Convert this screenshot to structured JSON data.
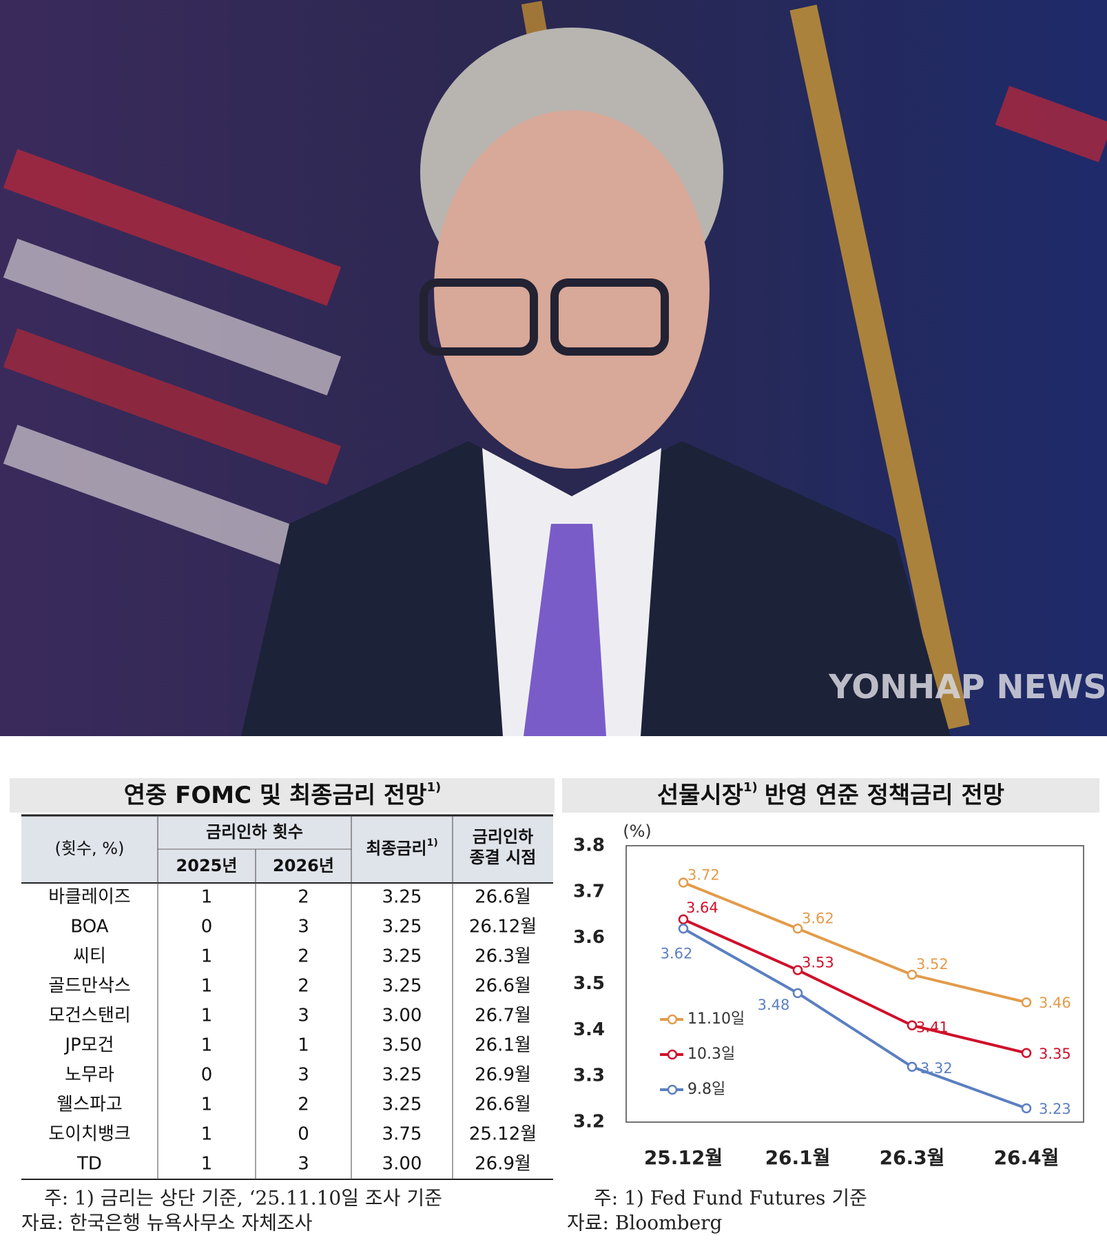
{
  "photo": {
    "watermark": "YONHAP NEWS"
  },
  "table": {
    "title": "연중 FOMC 및 최종금리 전망",
    "title_note": "1)",
    "header": {
      "unit": "(횟수, %)",
      "group": "금리인하 횟수",
      "years": [
        "2025년",
        "2026년"
      ],
      "final_rate": "최종금리",
      "final_rate_note": "1)",
      "end_line1": "금리인하",
      "end_line2": "종결 시점"
    },
    "rows": [
      [
        "바클레이즈",
        "1",
        "2",
        "3.25",
        "26.6월"
      ],
      [
        "BOA",
        "0",
        "3",
        "3.25",
        "26.12월"
      ],
      [
        "씨티",
        "1",
        "2",
        "3.25",
        "26.3월"
      ],
      [
        "골드만삭스",
        "1",
        "2",
        "3.25",
        "26.6월"
      ],
      [
        "모건스탠리",
        "1",
        "3",
        "3.00",
        "26.7월"
      ],
      [
        "JP모건",
        "1",
        "1",
        "3.50",
        "26.1월"
      ],
      [
        "노무라",
        "0",
        "3",
        "3.25",
        "26.9월"
      ],
      [
        "웰스파고",
        "1",
        "2",
        "3.25",
        "26.6월"
      ],
      [
        "도이치뱅크",
        "1",
        "0",
        "3.75",
        "25.12월"
      ],
      [
        "TD",
        "1",
        "3",
        "3.00",
        "26.9월"
      ]
    ],
    "note": "주: 1) 금리는 상단 기준, ‘25.11.10일 조사 기준",
    "source": "자료: 한국은행 뉴욕사무소 자체조사"
  },
  "chart_data": {
    "type": "line",
    "title": "선물시장",
    "title_note": "1)",
    "title_rest": "반영 연준 정책금리 전망",
    "y_unit": "(%)",
    "categories": [
      "25.12월",
      "26.1월",
      "26.3월",
      "26.4월"
    ],
    "series": [
      {
        "name": "11.10일",
        "color": "#e39b4b",
        "values": [
          3.72,
          3.62,
          3.52,
          3.46
        ]
      },
      {
        "name": "10.3일",
        "color": "#d0102a",
        "values": [
          3.64,
          3.53,
          3.41,
          3.35
        ]
      },
      {
        "name": "9.8일",
        "color": "#5b7fc0",
        "values": [
          3.62,
          3.48,
          3.32,
          3.23
        ]
      }
    ],
    "ylim": [
      3.2,
      3.8
    ],
    "yticks": [
      3.2,
      3.3,
      3.4,
      3.5,
      3.6,
      3.7,
      3.8
    ],
    "note": "주: 1) Fed Fund Futures 기준",
    "source": "자료: Bloomberg"
  }
}
